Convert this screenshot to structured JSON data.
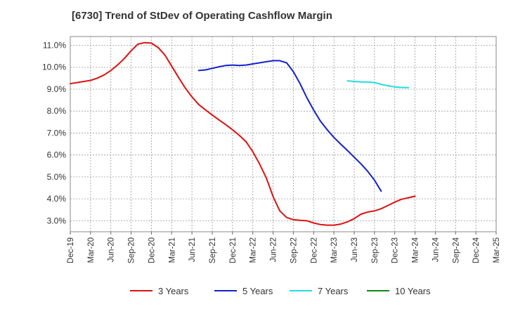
{
  "chart_data": {
    "type": "line",
    "title": "[6730]  Trend of StDev of Operating Cashflow Margin",
    "xlabel": "",
    "ylabel": "",
    "ylim": [
      2.5,
      11.4
    ],
    "grid": true,
    "legend_position": "bottom",
    "y_ticks": [
      "3.0%",
      "4.0%",
      "5.0%",
      "6.0%",
      "7.0%",
      "8.0%",
      "9.0%",
      "10.0%",
      "11.0%"
    ],
    "y_tick_values": [
      3,
      4,
      5,
      6,
      7,
      8,
      9,
      10,
      11
    ],
    "categories": [
      "Dec-19",
      "Mar-20",
      "Jun-20",
      "Sep-20",
      "Dec-20",
      "Mar-21",
      "Jun-21",
      "Sep-21",
      "Dec-21",
      "Mar-22",
      "Jun-22",
      "Sep-22",
      "Dec-22",
      "Mar-23",
      "Jun-23",
      "Sep-23",
      "Dec-23",
      "Mar-24",
      "Jun-24",
      "Sep-24",
      "Dec-24",
      "Mar-25"
    ],
    "series": [
      {
        "name": "3 Years",
        "color": "#dd1111",
        "points": [
          [
            0,
            9.25
          ],
          [
            0.33,
            9.3
          ],
          [
            0.67,
            9.35
          ],
          [
            1,
            9.4
          ],
          [
            1.33,
            9.5
          ],
          [
            1.67,
            9.65
          ],
          [
            2,
            9.85
          ],
          [
            2.33,
            10.1
          ],
          [
            2.67,
            10.4
          ],
          [
            3,
            10.75
          ],
          [
            3.33,
            11.05
          ],
          [
            3.67,
            11.12
          ],
          [
            4,
            11.1
          ],
          [
            4.33,
            10.9
          ],
          [
            4.67,
            10.55
          ],
          [
            5,
            10.05
          ],
          [
            5.33,
            9.55
          ],
          [
            5.67,
            9.05
          ],
          [
            6,
            8.65
          ],
          [
            6.33,
            8.3
          ],
          [
            6.67,
            8.05
          ],
          [
            7,
            7.82
          ],
          [
            7.33,
            7.6
          ],
          [
            7.67,
            7.38
          ],
          [
            8,
            7.15
          ],
          [
            8.33,
            6.9
          ],
          [
            8.67,
            6.6
          ],
          [
            9,
            6.15
          ],
          [
            9.33,
            5.6
          ],
          [
            9.67,
            4.95
          ],
          [
            10,
            4.1
          ],
          [
            10.33,
            3.45
          ],
          [
            10.67,
            3.15
          ],
          [
            11,
            3.05
          ],
          [
            11.33,
            3.02
          ],
          [
            11.67,
            3.0
          ],
          [
            12,
            2.9
          ],
          [
            12.33,
            2.83
          ],
          [
            12.67,
            2.8
          ],
          [
            13,
            2.8
          ],
          [
            13.33,
            2.85
          ],
          [
            13.67,
            2.95
          ],
          [
            14,
            3.1
          ],
          [
            14.33,
            3.3
          ],
          [
            14.67,
            3.4
          ],
          [
            15,
            3.45
          ],
          [
            15.33,
            3.55
          ],
          [
            15.67,
            3.7
          ],
          [
            16,
            3.85
          ],
          [
            16.33,
            3.98
          ],
          [
            16.67,
            4.05
          ],
          [
            17,
            4.12
          ]
        ]
      },
      {
        "name": "5 Years",
        "color": "#1122cc",
        "points": [
          [
            6.33,
            9.85
          ],
          [
            6.67,
            9.88
          ],
          [
            7,
            9.95
          ],
          [
            7.33,
            10.02
          ],
          [
            7.67,
            10.08
          ],
          [
            8,
            10.1
          ],
          [
            8.33,
            10.08
          ],
          [
            8.67,
            10.1
          ],
          [
            9,
            10.15
          ],
          [
            9.33,
            10.2
          ],
          [
            9.67,
            10.25
          ],
          [
            10,
            10.3
          ],
          [
            10.33,
            10.3
          ],
          [
            10.67,
            10.2
          ],
          [
            11,
            9.8
          ],
          [
            11.33,
            9.25
          ],
          [
            11.67,
            8.6
          ],
          [
            12,
            8.05
          ],
          [
            12.33,
            7.55
          ],
          [
            12.67,
            7.15
          ],
          [
            13,
            6.8
          ],
          [
            13.33,
            6.5
          ],
          [
            13.67,
            6.2
          ],
          [
            14,
            5.9
          ],
          [
            14.33,
            5.6
          ],
          [
            14.67,
            5.25
          ],
          [
            15,
            4.85
          ],
          [
            15.33,
            4.35
          ]
        ]
      },
      {
        "name": "7 Years",
        "color": "#22dddd",
        "points": [
          [
            13.67,
            9.38
          ],
          [
            14,
            9.35
          ],
          [
            14.33,
            9.33
          ],
          [
            14.67,
            9.33
          ],
          [
            15,
            9.3
          ],
          [
            15.33,
            9.22
          ],
          [
            15.67,
            9.15
          ],
          [
            16,
            9.1
          ],
          [
            16.33,
            9.08
          ],
          [
            16.67,
            9.07
          ]
        ]
      },
      {
        "name": "10 Years",
        "color": "#118811",
        "points": []
      }
    ]
  }
}
